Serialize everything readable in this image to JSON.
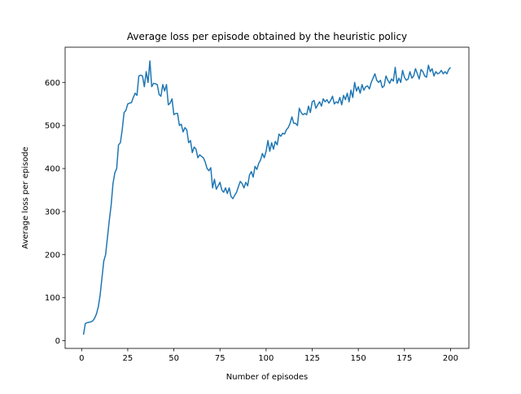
{
  "chart_data": {
    "type": "line",
    "title": "Average loss per episode obtained by the heuristic policy",
    "xlabel": "Number of episodes",
    "ylabel": "Average loss per episode",
    "xlim": [
      -8.95,
      209.95
    ],
    "ylim": [
      -17.8,
      681.8
    ],
    "xticks": [
      0,
      25,
      50,
      75,
      100,
      125,
      150,
      175,
      200
    ],
    "yticks": [
      0,
      100,
      200,
      300,
      400,
      500,
      600
    ],
    "series": [
      {
        "color": "#1f77b4",
        "x": [
          1,
          2,
          3,
          4,
          5,
          6,
          7,
          8,
          9,
          10,
          11,
          12,
          13,
          14,
          15,
          16,
          17,
          18,
          19,
          20,
          21,
          22,
          23,
          24,
          25,
          26,
          27,
          28,
          29,
          30,
          31,
          32,
          33,
          34,
          35,
          36,
          37,
          38,
          39,
          40,
          41,
          42,
          43,
          44,
          45,
          46,
          47,
          48,
          49,
          50,
          51,
          52,
          53,
          54,
          55,
          56,
          57,
          58,
          59,
          60,
          61,
          62,
          63,
          64,
          65,
          66,
          67,
          68,
          69,
          70,
          71,
          72,
          73,
          74,
          75,
          76,
          77,
          78,
          79,
          80,
          81,
          82,
          83,
          84,
          85,
          86,
          87,
          88,
          89,
          90,
          91,
          92,
          93,
          94,
          95,
          96,
          97,
          98,
          99,
          100,
          101,
          102,
          103,
          104,
          105,
          106,
          107,
          108,
          109,
          110,
          111,
          112,
          113,
          114,
          115,
          116,
          117,
          118,
          119,
          120,
          121,
          122,
          123,
          124,
          125,
          126,
          127,
          128,
          129,
          130,
          131,
          132,
          133,
          134,
          135,
          136,
          137,
          138,
          139,
          140,
          141,
          142,
          143,
          144,
          145,
          146,
          147,
          148,
          149,
          150,
          151,
          152,
          153,
          154,
          155,
          156,
          157,
          158,
          159,
          160,
          161,
          162,
          163,
          164,
          165,
          166,
          167,
          168,
          169,
          170,
          171,
          172,
          173,
          174,
          175,
          176,
          177,
          178,
          179,
          180,
          181,
          182,
          183,
          184,
          185,
          186,
          187,
          188,
          189,
          190,
          191,
          192,
          193,
          194,
          195,
          196,
          197,
          198,
          199,
          200
        ],
        "values": [
          14,
          40,
          42,
          43,
          44,
          46,
          52,
          62,
          78,
          105,
          145,
          185,
          200,
          240,
          280,
          315,
          365,
          390,
          400,
          455,
          460,
          490,
          530,
          535,
          550,
          552,
          553,
          565,
          575,
          570,
          615,
          617,
          615,
          590,
          625,
          600,
          650,
          590,
          598,
          597,
          595,
          572,
          568,
          595,
          580,
          595,
          548,
          552,
          562,
          525,
          528,
          528,
          500,
          503,
          485,
          495,
          490,
          460,
          465,
          437,
          450,
          445,
          425,
          432,
          428,
          425,
          415,
          400,
          395,
          402,
          355,
          375,
          352,
          360,
          368,
          350,
          345,
          355,
          342,
          355,
          335,
          330,
          338,
          345,
          358,
          370,
          365,
          355,
          368,
          360,
          385,
          393,
          380,
          405,
          398,
          412,
          420,
          435,
          425,
          440,
          465,
          440,
          460,
          445,
          463,
          455,
          480,
          475,
          482,
          480,
          490,
          495,
          505,
          520,
          505,
          505,
          500,
          540,
          530,
          525,
          528,
          525,
          545,
          530,
          555,
          558,
          540,
          548,
          555,
          545,
          562,
          555,
          560,
          552,
          558,
          568,
          550,
          555,
          552,
          565,
          548,
          570,
          560,
          575,
          555,
          582,
          565,
          600,
          580,
          590,
          575,
          595,
          582,
          590,
          592,
          585,
          600,
          610,
          620,
          605,
          600,
          605,
          588,
          592,
          615,
          605,
          598,
          608,
          603,
          635,
          598,
          610,
          600,
          628,
          612,
          605,
          608,
          625,
          610,
          615,
          632,
          620,
          608,
          630,
          625,
          615,
          612,
          640,
          625,
          632,
          615,
          625,
          620,
          622,
          628,
          620,
          625,
          620,
          630,
          635
        ]
      }
    ]
  }
}
